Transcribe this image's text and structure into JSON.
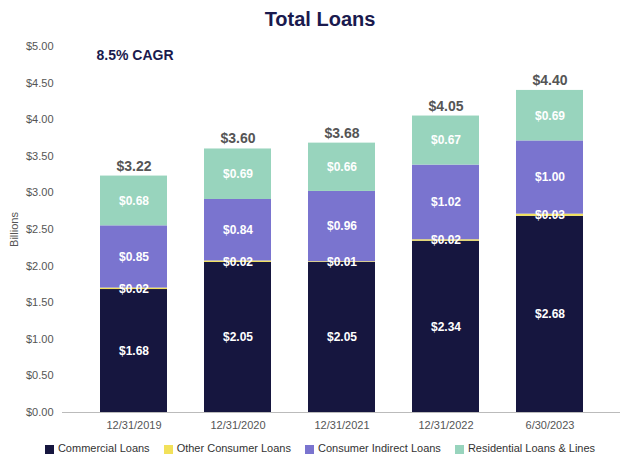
{
  "chart_data": {
    "type": "bar",
    "title": "Total Loans",
    "annotations": [
      "8.5% CAGR"
    ],
    "y_label": "Billions",
    "stacked": true,
    "data_labels": true,
    "grid": false,
    "legend": "bottom",
    "categories": [
      "12/31/2019",
      "12/31/2020",
      "12/31/2021",
      "12/31/2022",
      "6/30/2023"
    ],
    "series": [
      {
        "name": "Commercial Loans",
        "color": "#16163f",
        "values": [
          1.68,
          2.05,
          2.05,
          2.34,
          2.68
        ],
        "value_labels": [
          "$1.68",
          "$2.05",
          "$2.05",
          "$2.34",
          "$2.68"
        ]
      },
      {
        "name": "Other Consumer Loans",
        "color": "#f2e15a",
        "values": [
          0.02,
          0.02,
          0.01,
          0.02,
          0.03
        ],
        "value_labels": [
          "$0.02",
          "$0.02",
          "$0.01",
          "$0.02",
          "$0.03"
        ]
      },
      {
        "name": "Consumer Indirect Loans",
        "color": "#7a74cf",
        "values": [
          0.85,
          0.84,
          0.96,
          1.02,
          1.0
        ],
        "value_labels": [
          "$0.85",
          "$0.84",
          "$0.96",
          "$1.02",
          "$1.00"
        ]
      },
      {
        "name": "Residential Loans & Lines",
        "color": "#98d4bd",
        "values": [
          0.68,
          0.69,
          0.66,
          0.67,
          0.69
        ],
        "value_labels": [
          "$0.68",
          "$0.69",
          "$0.66",
          "$0.67",
          "$0.69"
        ]
      }
    ],
    "totals": [
      3.22,
      3.6,
      3.68,
      4.05,
      4.4
    ],
    "total_labels": [
      "$3.22",
      "$3.60",
      "$3.68",
      "$4.05",
      "$4.40"
    ],
    "ylim": [
      0,
      5
    ],
    "yticks": [
      {
        "value": 0,
        "label": "$0.00"
      },
      {
        "value": 0.5,
        "label": "$0.50"
      },
      {
        "value": 1,
        "label": "$1.00"
      },
      {
        "value": 1.5,
        "label": "$1.50"
      },
      {
        "value": 2,
        "label": "$2.00"
      },
      {
        "value": 2.5,
        "label": "$2.50"
      },
      {
        "value": 3,
        "label": "$3.00"
      },
      {
        "value": 3.5,
        "label": "$3.50"
      },
      {
        "value": 4,
        "label": "$4.00"
      },
      {
        "value": 4.5,
        "label": "$4.50"
      },
      {
        "value": 5,
        "label": "$5.00"
      }
    ]
  }
}
